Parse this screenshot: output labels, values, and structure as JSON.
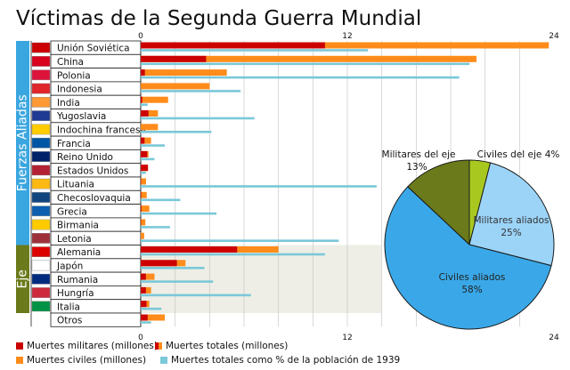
{
  "title": "Víctimas de la Segunda Guerra Mundial",
  "group_labels": {
    "allies": "Fuerzas Aliadas",
    "axis": "Eje"
  },
  "colors": {
    "military": "#cc0000",
    "civil": "#ff8c1a",
    "percent": "#7ac8d8",
    "allies_band": "#3aa6e0",
    "axis_band": "#6b7a1a",
    "axis_bg": "#eeeee6",
    "pie_military_axis": "#6b7a1a",
    "pie_civil_axis": "#a8c820",
    "pie_military_allies": "#9cd4f8",
    "pie_civil_allies": "#3aa8e8"
  },
  "legend": {
    "military": "Muertes militares (millones)",
    "total": "Muertes totales (millones)",
    "civil": "Muertes civiles (millones)",
    "percent": "Muertes totales como % de la población de 1939"
  },
  "chart_data": [
    {
      "type": "bar",
      "orientation": "horizontal",
      "axis_ticks": [
        "0",
        "12",
        "24"
      ],
      "xlim": [
        0,
        24
      ],
      "categories": [
        "Unión Soviética",
        "China",
        "Polonia",
        "Indonesia",
        "India",
        "Yugoslavia",
        "Indochina francesa",
        "Francia",
        "Reino Unido",
        "Estados Unidos",
        "Lituania",
        "Checoslovaquia",
        "Grecia",
        "Birmania",
        "Letonia",
        "Alemania",
        "Japón",
        "Rumania",
        "Hungría",
        "Italia",
        "Otros"
      ],
      "groups": [
        {
          "name": "allies",
          "from": 0,
          "to": 14
        },
        {
          "name": "axis",
          "from": 15,
          "to": 19
        }
      ],
      "series": [
        {
          "name": "Muertes militares (millones)",
          "values": [
            10.7,
            3.8,
            0.24,
            0.0,
            0.09,
            0.45,
            0.0,
            0.22,
            0.38,
            0.42,
            0.02,
            0.03,
            0.04,
            0.02,
            0.0,
            5.6,
            2.1,
            0.3,
            0.3,
            0.34,
            0.4
          ]
        },
        {
          "name": "Muertes civiles (millones)",
          "values": [
            13.0,
            15.7,
            4.76,
            4.0,
            1.5,
            0.55,
            1.0,
            0.38,
            0.07,
            0.0,
            0.29,
            0.32,
            0.46,
            0.25,
            0.2,
            2.4,
            0.5,
            0.5,
            0.3,
            0.16,
            1.0
          ]
        },
        {
          "name": "Muertes totales como % de la población de 1939",
          "values": [
            13.2,
            19.1,
            18.5,
            5.8,
            0.4,
            6.6,
            4.1,
            1.4,
            0.8,
            0.3,
            13.7,
            2.3,
            4.4,
            1.7,
            11.5,
            10.7,
            3.7,
            4.2,
            6.4,
            1.2,
            0.6
          ]
        }
      ]
    },
    {
      "type": "pie",
      "slices": [
        {
          "label": "Militares del eje",
          "percent": "13%",
          "value": 13
        },
        {
          "label": "Civiles del eje",
          "percent": "4%",
          "value": 4
        },
        {
          "label": "Militares aliados",
          "percent": "25%",
          "value": 25
        },
        {
          "label": "Civiles aliados",
          "percent": "58%",
          "value": 58
        }
      ]
    }
  ]
}
